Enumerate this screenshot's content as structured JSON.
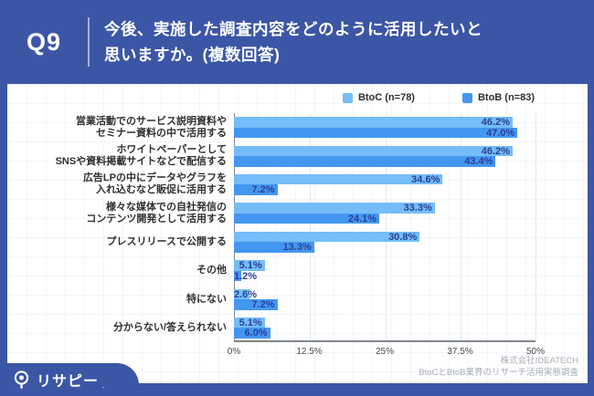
{
  "header": {
    "question_number": "Q9",
    "question_line1": "今後、実施した調査内容をどのように活用したいと",
    "question_line2": "思いますか。(複数回答)"
  },
  "chart_data": {
    "type": "bar",
    "orientation": "horizontal",
    "categories": [
      "営業活動でのサービス説明資料や\nセミナー資料の中で活用する",
      "ホワイトペーパーとして\nSNSや資料掲載サイトなどで配信する",
      "広告LPの中にデータやグラフを\n入れ込むなど販促に活用する",
      "様々な媒体での自社発信の\nコンテンツ開発として活用する",
      "プレスリリースで公開する",
      "その他",
      "特にない",
      "分からない/答えられない"
    ],
    "series": [
      {
        "name": "BtoC",
        "legend_label": "BtoC (n=78)",
        "color": "#75BDF8",
        "values": [
          46.2,
          46.2,
          34.6,
          33.3,
          30.8,
          5.1,
          2.6,
          5.1
        ]
      },
      {
        "name": "BtoB",
        "legend_label": "BtoB (n=83)",
        "color": "#4397F1",
        "values": [
          47.0,
          43.4,
          7.2,
          24.1,
          13.3,
          1.2,
          7.2,
          6.0
        ]
      }
    ],
    "value_suffix": "%",
    "xlim": [
      0,
      50
    ],
    "xticks": [
      {
        "value": 0,
        "label": "0%"
      },
      {
        "value": 12.5,
        "label": "12.5%"
      },
      {
        "value": 25,
        "label": "25%"
      },
      {
        "value": 37.5,
        "label": "37.5%"
      },
      {
        "value": 50,
        "label": "50%"
      }
    ],
    "legend_position": "top-right",
    "grid": true
  },
  "footer": {
    "credit_line1": "株式会社IDEATECH",
    "credit_line2": "BtoCとBtoB業界のリサーチ活用実態調査",
    "logo_text": "リサピー",
    "logo_mark": "."
  },
  "colors": {
    "frame_blue": "#3C56A6",
    "bar_btoc": "#75BDF8",
    "bar_btob": "#4397F1",
    "value_label_text": "#2B3F96"
  }
}
